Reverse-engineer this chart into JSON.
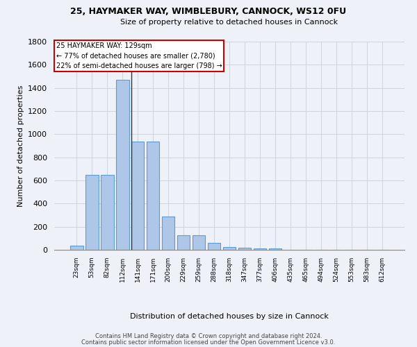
{
  "title1": "25, HAYMAKER WAY, WIMBLEBURY, CANNOCK, WS12 0FU",
  "title2": "Size of property relative to detached houses in Cannock",
  "xlabel": "Distribution of detached houses by size in Cannock",
  "ylabel": "Number of detached properties",
  "footnote1": "Contains HM Land Registry data © Crown copyright and database right 2024.",
  "footnote2": "Contains public sector information licensed under the Open Government Licence v3.0.",
  "bin_labels": [
    "23sqm",
    "53sqm",
    "82sqm",
    "112sqm",
    "141sqm",
    "171sqm",
    "200sqm",
    "229sqm",
    "259sqm",
    "288sqm",
    "318sqm",
    "347sqm",
    "377sqm",
    "406sqm",
    "435sqm",
    "465sqm",
    "494sqm",
    "524sqm",
    "553sqm",
    "583sqm",
    "612sqm"
  ],
  "bar_heights": [
    35,
    650,
    650,
    1470,
    935,
    935,
    290,
    125,
    125,
    60,
    25,
    20,
    15,
    15,
    0,
    0,
    0,
    0,
    0,
    0,
    0
  ],
  "bar_color": "#aec6e8",
  "bar_edge_color": "#5b9bd5",
  "annotation_line1": "25 HAYMAKER WAY: 129sqm",
  "annotation_line2": "← 77% of detached houses are smaller (2,780)",
  "annotation_line3": "22% of semi-detached houses are larger (798) →",
  "vline_color": "#333333",
  "ylim": [
    0,
    1800
  ],
  "yticks": [
    0,
    200,
    400,
    600,
    800,
    1000,
    1200,
    1400,
    1600,
    1800
  ],
  "background_color": "#eef2f8",
  "annotation_box_color": "#ffffff",
  "annotation_box_edge": "#cc0000",
  "grid_color": "#c8cfd8"
}
